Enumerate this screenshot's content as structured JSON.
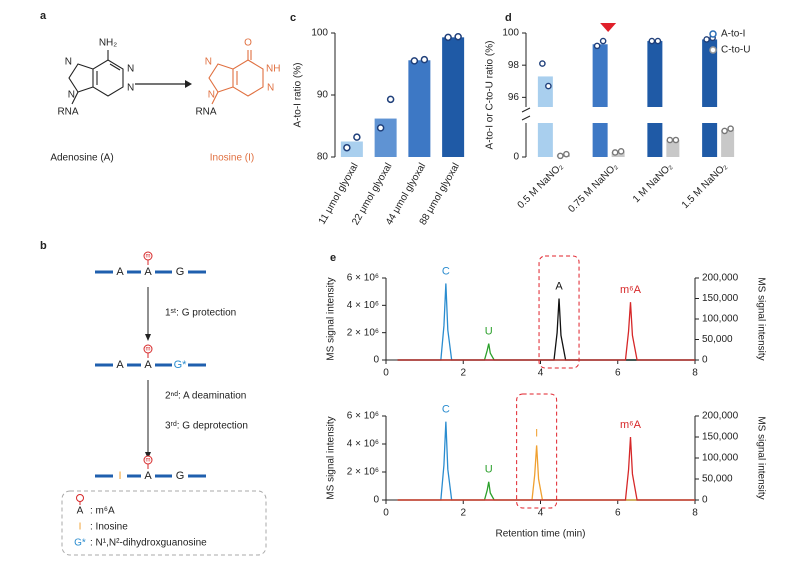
{
  "panel_a": {
    "label": "a",
    "adenosine": {
      "atoms": [
        "NH₂",
        "N",
        "N",
        "N",
        "N",
        "RNA"
      ],
      "name": "Adenosine (A)"
    },
    "inosine": {
      "atoms": [
        "O",
        "NH",
        "N",
        "N",
        "N",
        "RNA"
      ],
      "name": "Inosine (I)"
    }
  },
  "panel_b": {
    "label": "b",
    "rows": [
      [
        "A",
        "A",
        "G"
      ],
      [
        "A",
        "A",
        "G*"
      ],
      [
        "I",
        "A",
        "G"
      ]
    ],
    "marker": "m",
    "steps": [
      "1ˢᵗ: G protection",
      "2ⁿᵈ: A deamination",
      "3ʳᵈ: G deprotection"
    ],
    "legend": [
      {
        "symbol": "A",
        "text": ": m⁶A"
      },
      {
        "symbol": "I",
        "text": ": Inosine"
      },
      {
        "symbol": "G*",
        "text": ": N¹,N²-dihydroxguanosine"
      }
    ]
  },
  "chart_data": [
    {
      "type": "bar",
      "label": "c",
      "ylabel": "A-to-I ratio (%)",
      "categories": [
        "11 μmol glyoxal",
        "22 μmol glyoxal",
        "44 μmol glyoxal",
        "88 μmol glyoxal"
      ],
      "values": [
        82.5,
        86.2,
        95.6,
        99.3
      ],
      "colors": [
        "#a9cfee",
        "#5f93d3",
        "#3d78c5",
        "#1f5aa6"
      ],
      "point_color": "#1f3f7a",
      "replicates": [
        [
          81.5,
          83.2
        ],
        [
          84.7,
          89.3
        ],
        [
          95.5,
          95.7
        ],
        [
          99.3,
          99.4
        ]
      ],
      "ylim": [
        80,
        100
      ],
      "yticks": [
        80,
        90,
        100
      ]
    },
    {
      "type": "broken_bar",
      "label": "d",
      "ylabel": "A-to-I or C-to-U ratio (%)",
      "categories": [
        "0.5 M NaNO₂",
        "0.75 M NaNO₂",
        "1 M NaNO₂",
        "1.5 M NaNO₂"
      ],
      "series": [
        {
          "name": "A-to-I",
          "color": "#2a6db5",
          "colors": [
            "#a9cfee",
            "#3d78c5",
            "#1f5aa6",
            "#1f5aa6"
          ],
          "values": [
            97.3,
            99.3,
            99.5,
            99.6
          ],
          "replicates": [
            [
              98.1,
              96.7
            ],
            [
              99.2,
              99.5
            ],
            [
              99.5,
              99.5
            ],
            [
              99.6,
              99.7
            ]
          ]
        },
        {
          "name": "C-to-U",
          "color": "#9a9a9a",
          "colors": [
            "#c8c8c8",
            "#c8c8c8",
            "#c8c8c8",
            "#c8c8c8"
          ],
          "values": [
            2,
            4.5,
            15,
            24
          ],
          "replicates": [
            [
              1,
              2.5
            ],
            [
              4,
              5
            ],
            [
              15,
              15
            ],
            [
              23,
              25
            ]
          ]
        }
      ],
      "ylim": [
        0,
        30
      ],
      "yticks": [
        0
      ],
      "ylim_upper": [
        95.4,
        100
      ],
      "yticks_upper": [
        96,
        98,
        100
      ],
      "highlight": 1,
      "highlight_color": "#e0202a"
    },
    {
      "type": "line",
      "label": "e",
      "ylabel": "MS signal intensity",
      "y2label": "MS signal intensity",
      "xlim": [
        0,
        8
      ],
      "xticks": [
        0,
        2,
        4,
        6,
        8
      ],
      "ylim": [
        0,
        6000000
      ],
      "yticks": [
        0,
        {
          "value": 2000000,
          "label": "2 × 10⁶"
        },
        {
          "value": 4000000,
          "label": "4 × 10⁶"
        },
        {
          "value": 6000000,
          "label": "6 × 10⁶"
        }
      ],
      "y2lim": [
        0,
        200000
      ],
      "y2ticks": [
        0,
        {
          "value": 50000,
          "label": "50,000"
        },
        {
          "value": 100000,
          "label": "100,000"
        },
        {
          "value": 150000,
          "label": "150,000"
        },
        {
          "value": 200000,
          "label": "200,000"
        }
      ],
      "highlight": 2,
      "highlight_color": "#e0202a",
      "series": [
        {
          "name": "C",
          "color": "#2a8ccf",
          "x": [
            0.3,
            1.42,
            1.5,
            1.55,
            1.6,
            1.7,
            8
          ],
          "values": [
            0,
            0,
            2500000,
            5600000,
            2200000,
            0,
            0
          ]
        },
        {
          "name": "U",
          "color": "#2ca02c",
          "x": [
            0.3,
            2.55,
            2.62,
            2.66,
            2.7,
            2.8,
            8
          ],
          "values": [
            0,
            0,
            700000,
            1200000,
            500000,
            0,
            0
          ]
        },
        {
          "name": "A",
          "color": "#111111",
          "x": [
            0.3,
            4.35,
            4.43,
            4.48,
            4.53,
            4.65,
            8
          ],
          "values": [
            0,
            0,
            2000000,
            4500000,
            1800000,
            0,
            0
          ]
        },
        {
          "name": "m⁶A",
          "color": "#d62728",
          "axis": "y2",
          "x": [
            0.3,
            6.2,
            6.28,
            6.33,
            6.38,
            6.5,
            8
          ],
          "values": [
            0,
            0,
            70000,
            141000,
            60000,
            0,
            0
          ]
        }
      ]
    },
    {
      "type": "line",
      "xlabel": "Retention time (min)",
      "ylabel": "MS signal intensity",
      "y2label": "MS signal intensity",
      "xlim": [
        0,
        8
      ],
      "xticks": [
        0,
        2,
        4,
        6,
        8
      ],
      "ylim": [
        0,
        6000000
      ],
      "yticks": [
        0,
        {
          "value": 2000000,
          "label": "2 × 10⁶"
        },
        {
          "value": 4000000,
          "label": "4 × 10⁶"
        },
        {
          "value": 6000000,
          "label": "6 × 10⁶"
        }
      ],
      "y2lim": [
        0,
        200000
      ],
      "y2ticks": [
        0,
        {
          "value": 50000,
          "label": "50,000"
        },
        {
          "value": 100000,
          "label": "100,000"
        },
        {
          "value": 150000,
          "label": "150,000"
        },
        {
          "value": 200000,
          "label": "200,000"
        }
      ],
      "highlight": 2,
      "highlight_color": "#e0202a",
      "series": [
        {
          "name": "C",
          "color": "#2a8ccf",
          "x": [
            0.3,
            1.42,
            1.5,
            1.55,
            1.6,
            1.7,
            8
          ],
          "values": [
            0,
            0,
            2500000,
            5600000,
            2200000,
            0,
            0
          ]
        },
        {
          "name": "U",
          "color": "#2ca02c",
          "x": [
            0.3,
            2.55,
            2.62,
            2.66,
            2.7,
            2.8,
            8
          ],
          "values": [
            0,
            0,
            700000,
            1300000,
            500000,
            0,
            0
          ]
        },
        {
          "name": "I",
          "color": "#f0a030",
          "x": [
            0.3,
            3.78,
            3.85,
            3.9,
            3.95,
            4.05,
            8
          ],
          "values": [
            0,
            0,
            1800000,
            3900000,
            1500000,
            0,
            0
          ]
        },
        {
          "name": "m⁶A",
          "color": "#d62728",
          "axis": "y2",
          "x": [
            0.3,
            6.2,
            6.28,
            6.33,
            6.38,
            6.5,
            8
          ],
          "values": [
            0,
            0,
            72000,
            150000,
            62000,
            0,
            0
          ]
        }
      ]
    }
  ]
}
